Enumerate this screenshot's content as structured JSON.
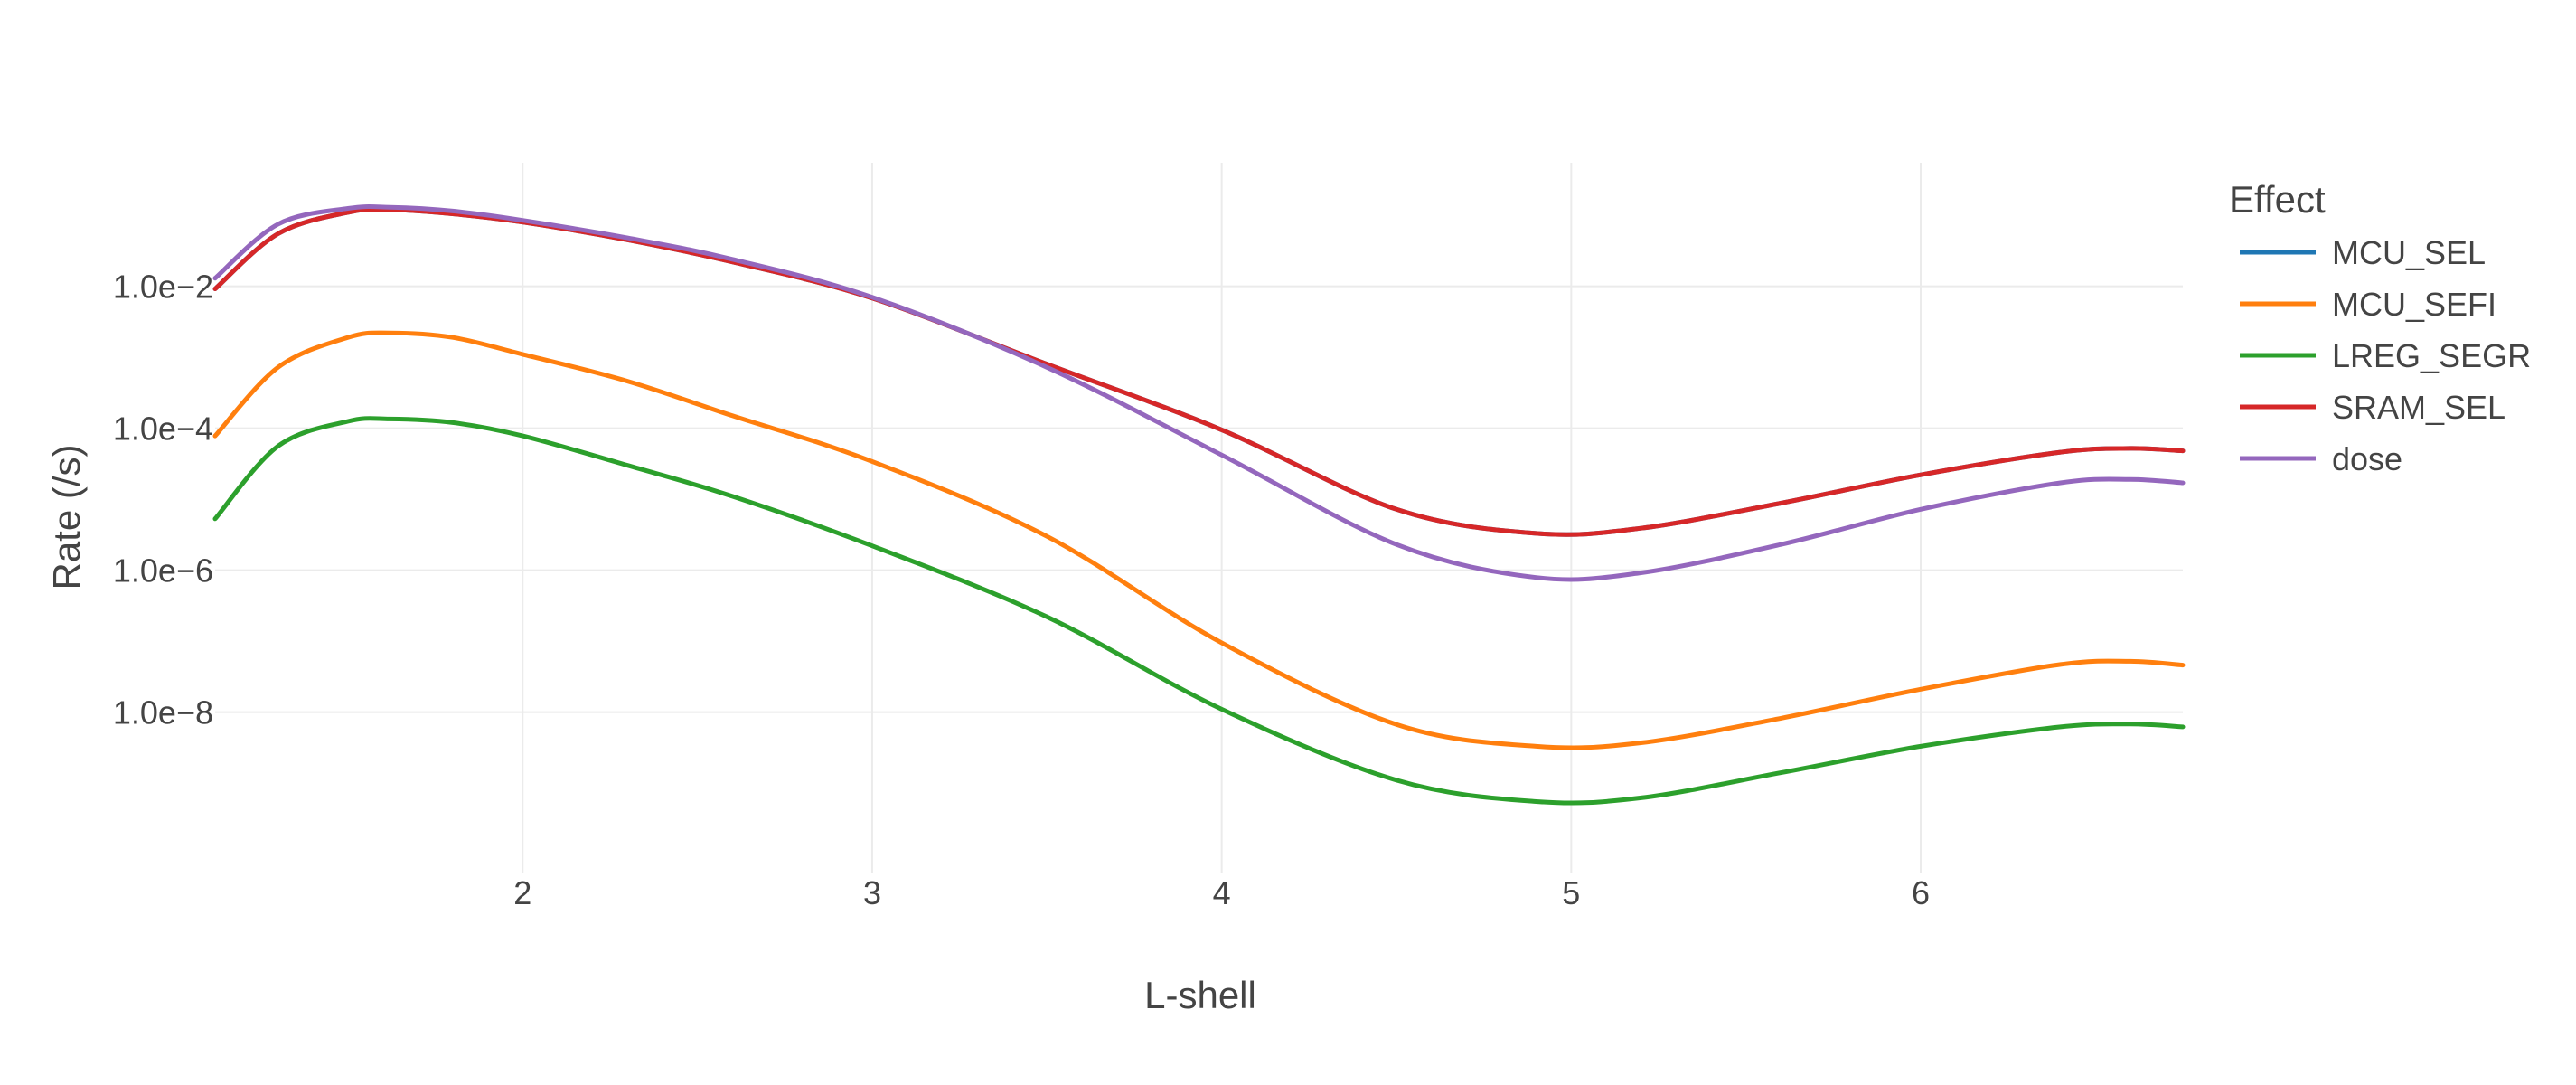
{
  "chart_data": {
    "type": "line",
    "title": "",
    "xlabel": "L-shell",
    "ylabel": "Rate (/s)",
    "x_scale": "linear",
    "y_scale": "log",
    "xlim": [
      1.12,
      6.75
    ],
    "ylim": [
      5.5e-11,
      0.55
    ],
    "x_ticks": [
      2,
      3,
      4,
      5,
      6
    ],
    "x_tick_labels": [
      "2",
      "3",
      "4",
      "5",
      "6"
    ],
    "y_ticks": [
      0.01,
      0.0001,
      1e-06,
      1e-08
    ],
    "y_tick_labels": [
      "1.0e−2",
      "1.0e−4",
      "1.0e−6",
      "1.0e−8"
    ],
    "grid": true,
    "legend_title": "Effect",
    "legend_position": "right",
    "x": [
      1.12,
      1.3,
      1.5,
      1.62,
      1.8,
      2.0,
      2.3,
      2.6,
      3.0,
      3.5,
      4.0,
      4.5,
      4.9,
      5.2,
      5.6,
      6.0,
      6.4,
      6.6,
      6.75
    ],
    "series": [
      {
        "name": "MCU_SEL",
        "color": "#1f77b4",
        "values": [
          0.0092,
          0.055,
          0.11,
          0.12,
          0.105,
          0.08,
          0.045,
          0.022,
          0.0068,
          0.0008,
          9.5e-05,
          7.2e-06,
          3.3e-06,
          3.9e-06,
          8.8e-06,
          2.2e-05,
          4.6e-05,
          5.2e-05,
          4.8e-05
        ]
      },
      {
        "name": "MCU_SEFI",
        "color": "#ff7f0e",
        "values": [
          7.8e-05,
          0.00072,
          0.0019,
          0.0022,
          0.0019,
          0.0011,
          0.00046,
          0.00015,
          3.4e-05,
          3e-06,
          9.5e-08,
          6.7e-09,
          3.3e-09,
          3.7e-09,
          8.2e-09,
          2.1e-08,
          4.7e-08,
          5.2e-08,
          4.6e-08
        ]
      },
      {
        "name": "LREG_SEGR",
        "color": "#2ca02c",
        "values": [
          5.3e-06,
          5.6e-05,
          0.000125,
          0.000135,
          0.00012,
          7.8e-05,
          3e-05,
          1.1e-05,
          2.2e-06,
          2.2e-07,
          1.1e-08,
          1.1e-09,
          5.5e-10,
          6.2e-10,
          1.4e-09,
          3.3e-09,
          6.2e-09,
          6.8e-09,
          6.2e-09
        ]
      },
      {
        "name": "SRAM_SEL",
        "color": "#d62728",
        "values": [
          0.0092,
          0.055,
          0.11,
          0.12,
          0.105,
          0.08,
          0.045,
          0.022,
          0.0068,
          0.0008,
          9.5e-05,
          7.2e-06,
          3.3e-06,
          3.9e-06,
          8.8e-06,
          2.2e-05,
          4.6e-05,
          5.2e-05,
          4.8e-05
        ]
      },
      {
        "name": "dose",
        "color": "#9467bd",
        "values": [
          0.013,
          0.075,
          0.125,
          0.13,
          0.115,
          0.085,
          0.048,
          0.024,
          0.007,
          0.00072,
          4.2e-05,
          2.3e-06,
          7.9e-07,
          9.2e-07,
          2.3e-06,
          7.2e-06,
          1.7e-05,
          1.9e-05,
          1.7e-05
        ]
      }
    ]
  }
}
